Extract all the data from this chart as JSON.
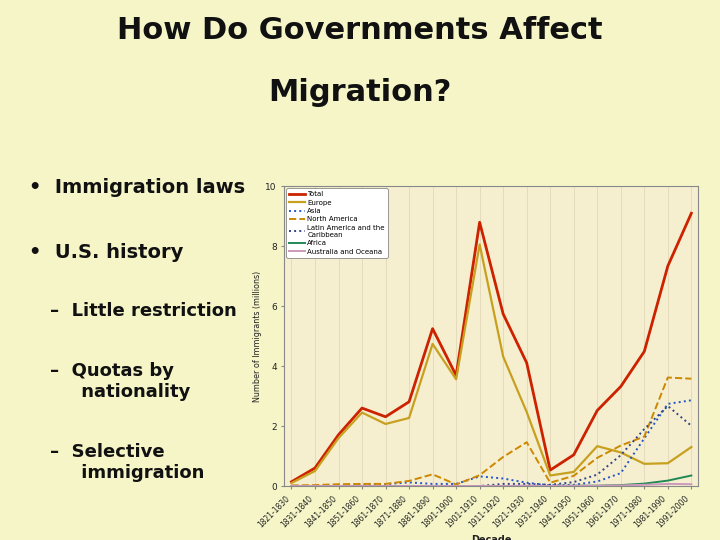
{
  "title_line1": "How Do Governments Affect",
  "title_line2": "Migration?",
  "background_color": "#f5f5c8",
  "decades": [
    "1821-1830",
    "1831-1840",
    "1841-1850",
    "1851-1860",
    "1861-1870",
    "1871-1880",
    "1881-1890",
    "1891-1900",
    "1901-1910",
    "1911-1920",
    "1921-1930",
    "1931-1940",
    "1941-1950",
    "1951-1960",
    "1961-1970",
    "1971-1980",
    "1981-1990",
    "1991-2000"
  ],
  "total": [
    0.14,
    0.6,
    1.71,
    2.6,
    2.31,
    2.81,
    5.25,
    3.69,
    8.8,
    5.74,
    4.11,
    0.53,
    1.04,
    2.52,
    3.32,
    4.49,
    7.34,
    9.1
  ],
  "europe": [
    0.1,
    0.5,
    1.6,
    2.45,
    2.07,
    2.27,
    4.74,
    3.56,
    8.06,
    4.32,
    2.47,
    0.35,
    0.47,
    1.33,
    1.12,
    0.74,
    0.76,
    1.3
  ],
  "asia": [
    0.0,
    0.0,
    0.0,
    0.04,
    0.06,
    0.12,
    0.07,
    0.07,
    0.32,
    0.25,
    0.11,
    0.02,
    0.04,
    0.15,
    0.43,
    1.59,
    2.74,
    2.86
  ],
  "north_america": [
    0.02,
    0.03,
    0.06,
    0.07,
    0.07,
    0.17,
    0.39,
    0.05,
    0.36,
    0.97,
    1.46,
    0.11,
    0.34,
    0.94,
    1.35,
    1.65,
    3.62,
    3.58
  ],
  "latin_america": [
    0.0,
    0.0,
    0.0,
    0.0,
    0.0,
    0.0,
    0.0,
    0.0,
    0.0,
    0.07,
    0.07,
    0.04,
    0.13,
    0.38,
    1.03,
    1.9,
    2.67,
    2.01
  ],
  "africa": [
    0.0,
    0.0,
    0.0,
    0.0,
    0.0,
    0.0,
    0.0,
    0.0,
    0.0,
    0.0,
    0.0,
    0.0,
    0.01,
    0.01,
    0.03,
    0.08,
    0.18,
    0.35
  ],
  "australia": [
    0.0,
    0.0,
    0.0,
    0.0,
    0.0,
    0.0,
    0.0,
    0.0,
    0.0,
    0.0,
    0.01,
    0.0,
    0.01,
    0.01,
    0.02,
    0.04,
    0.07,
    0.06
  ],
  "series_colors": [
    "#cc2200",
    "#c8a020",
    "#2255cc",
    "#cc8800",
    "#334488",
    "#228855",
    "#cc99bb"
  ],
  "series_styles": [
    "-",
    "-",
    ":",
    "--",
    ":",
    "-",
    "-"
  ],
  "series_linewidths": [
    2.0,
    1.6,
    1.4,
    1.4,
    1.4,
    1.4,
    1.4
  ],
  "series_labels": [
    "Total",
    "Europe",
    "Asia",
    "North America",
    "Latin America and the\nCaribbean",
    "Africa",
    "Australia and Oceana"
  ],
  "xlabel": "Decade",
  "ylabel": "Number of Immigrants (millions)",
  "ylim": [
    0,
    10
  ],
  "yticks": [
    0,
    2,
    4,
    6,
    8,
    10
  ],
  "chart_bg": "#f5efd0",
  "chart_border": "#888888",
  "grid_color": "#e0d8b8",
  "title_fontsize": 22,
  "bullet_fontsize": 14,
  "sub_bullet_fontsize": 13
}
